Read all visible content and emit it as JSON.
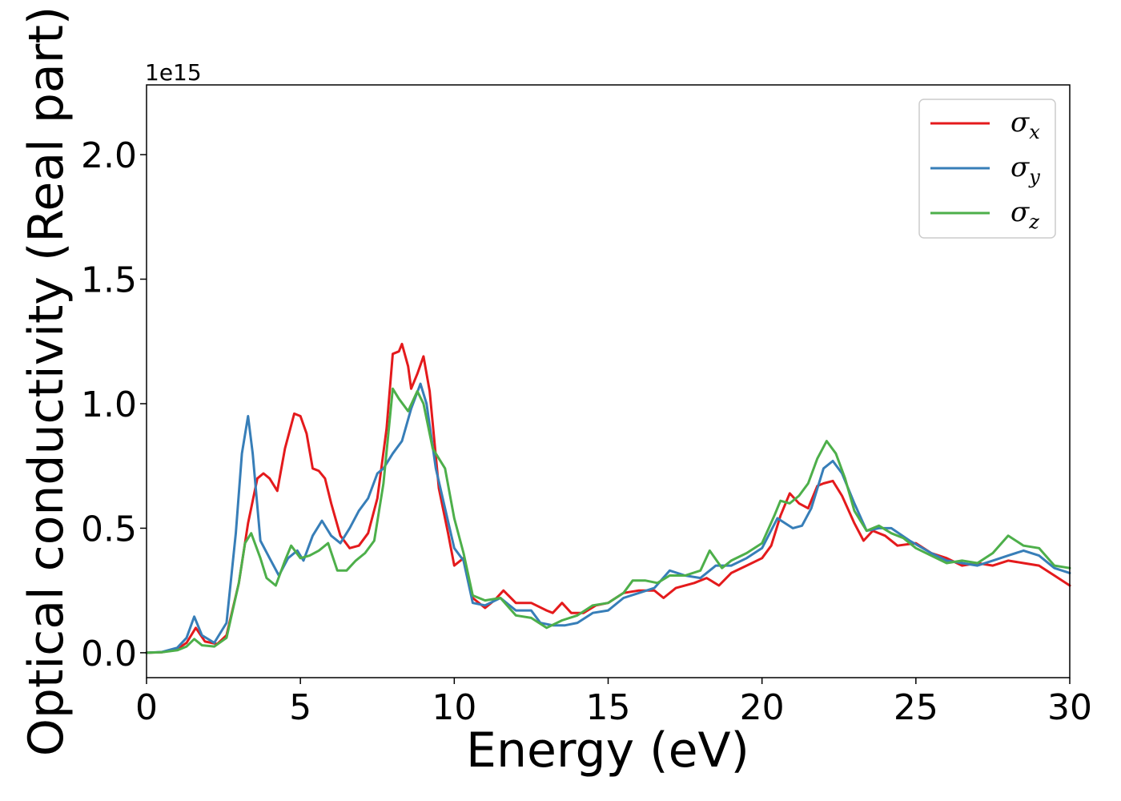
{
  "chart_data": {
    "type": "line",
    "xlabel": "Energy (eV)",
    "ylabel": "Optical conductivity (Real part)",
    "y_offset_label": "1e15",
    "xlim": [
      0,
      30
    ],
    "ylim": [
      -0.1,
      2.28
    ],
    "x_ticks": [
      0,
      5,
      10,
      15,
      20,
      25,
      30
    ],
    "x_tick_labels": [
      "0",
      "5",
      "10",
      "15",
      "20",
      "25",
      "30"
    ],
    "y_ticks": [
      0.0,
      0.5,
      1.0,
      1.5,
      2.0
    ],
    "y_tick_labels": [
      "0.0",
      "0.5",
      "1.0",
      "1.5",
      "2.0"
    ],
    "grid": false,
    "legend_position": "top-right",
    "series": [
      {
        "name": "σ",
        "subscript": "x",
        "color": "#e41a1c",
        "points": [
          [
            0,
            0
          ],
          [
            0.5,
            0.002
          ],
          [
            1.0,
            0.015
          ],
          [
            1.3,
            0.04
          ],
          [
            1.6,
            0.1
          ],
          [
            1.9,
            0.045
          ],
          [
            2.3,
            0.035
          ],
          [
            2.6,
            0.07
          ],
          [
            3.0,
            0.28
          ],
          [
            3.3,
            0.52
          ],
          [
            3.6,
            0.7
          ],
          [
            3.8,
            0.72
          ],
          [
            4.0,
            0.7
          ],
          [
            4.25,
            0.65
          ],
          [
            4.5,
            0.82
          ],
          [
            4.8,
            0.96
          ],
          [
            5.0,
            0.95
          ],
          [
            5.2,
            0.88
          ],
          [
            5.4,
            0.74
          ],
          [
            5.6,
            0.73
          ],
          [
            5.8,
            0.7
          ],
          [
            6.0,
            0.6
          ],
          [
            6.3,
            0.47
          ],
          [
            6.6,
            0.42
          ],
          [
            6.9,
            0.43
          ],
          [
            7.2,
            0.48
          ],
          [
            7.5,
            0.62
          ],
          [
            7.8,
            0.9
          ],
          [
            8.0,
            1.2
          ],
          [
            8.2,
            1.21
          ],
          [
            8.3,
            1.24
          ],
          [
            8.5,
            1.15
          ],
          [
            8.6,
            1.06
          ],
          [
            8.8,
            1.12
          ],
          [
            9.0,
            1.19
          ],
          [
            9.2,
            1.05
          ],
          [
            9.5,
            0.66
          ],
          [
            9.8,
            0.48
          ],
          [
            10.0,
            0.35
          ],
          [
            10.3,
            0.38
          ],
          [
            10.6,
            0.22
          ],
          [
            11.0,
            0.18
          ],
          [
            11.3,
            0.21
          ],
          [
            11.6,
            0.25
          ],
          [
            12.0,
            0.2
          ],
          [
            12.5,
            0.2
          ],
          [
            13.0,
            0.17
          ],
          [
            13.2,
            0.16
          ],
          [
            13.5,
            0.2
          ],
          [
            13.8,
            0.16
          ],
          [
            14.2,
            0.16
          ],
          [
            14.6,
            0.19
          ],
          [
            15.0,
            0.2
          ],
          [
            15.5,
            0.24
          ],
          [
            16.0,
            0.25
          ],
          [
            16.5,
            0.25
          ],
          [
            16.8,
            0.22
          ],
          [
            17.2,
            0.26
          ],
          [
            17.8,
            0.28
          ],
          [
            18.2,
            0.3
          ],
          [
            18.6,
            0.27
          ],
          [
            19.0,
            0.32
          ],
          [
            19.5,
            0.35
          ],
          [
            20.0,
            0.38
          ],
          [
            20.3,
            0.43
          ],
          [
            20.6,
            0.55
          ],
          [
            20.9,
            0.64
          ],
          [
            21.2,
            0.6
          ],
          [
            21.5,
            0.58
          ],
          [
            21.8,
            0.67
          ],
          [
            22.0,
            0.68
          ],
          [
            22.3,
            0.69
          ],
          [
            22.6,
            0.63
          ],
          [
            23.0,
            0.52
          ],
          [
            23.3,
            0.45
          ],
          [
            23.6,
            0.49
          ],
          [
            24.0,
            0.47
          ],
          [
            24.4,
            0.43
          ],
          [
            25.0,
            0.44
          ],
          [
            25.5,
            0.4
          ],
          [
            26.0,
            0.38
          ],
          [
            26.5,
            0.35
          ],
          [
            27.0,
            0.36
          ],
          [
            27.5,
            0.35
          ],
          [
            28.0,
            0.37
          ],
          [
            28.5,
            0.36
          ],
          [
            29.0,
            0.35
          ],
          [
            29.5,
            0.31
          ],
          [
            30.0,
            0.27
          ]
        ]
      },
      {
        "name": "σ",
        "subscript": "y",
        "color": "#377eb8",
        "points": [
          [
            0,
            0
          ],
          [
            0.5,
            0.003
          ],
          [
            1.0,
            0.02
          ],
          [
            1.3,
            0.06
          ],
          [
            1.55,
            0.145
          ],
          [
            1.8,
            0.07
          ],
          [
            2.2,
            0.04
          ],
          [
            2.6,
            0.12
          ],
          [
            2.9,
            0.48
          ],
          [
            3.1,
            0.8
          ],
          [
            3.3,
            0.95
          ],
          [
            3.45,
            0.8
          ],
          [
            3.7,
            0.45
          ],
          [
            4.0,
            0.38
          ],
          [
            4.3,
            0.31
          ],
          [
            4.6,
            0.38
          ],
          [
            4.9,
            0.41
          ],
          [
            5.1,
            0.37
          ],
          [
            5.4,
            0.47
          ],
          [
            5.7,
            0.53
          ],
          [
            6.0,
            0.47
          ],
          [
            6.3,
            0.44
          ],
          [
            6.6,
            0.5
          ],
          [
            6.9,
            0.57
          ],
          [
            7.2,
            0.62
          ],
          [
            7.5,
            0.72
          ],
          [
            7.7,
            0.74
          ],
          [
            8.0,
            0.8
          ],
          [
            8.3,
            0.85
          ],
          [
            8.6,
            0.98
          ],
          [
            8.9,
            1.08
          ],
          [
            9.1,
            1.0
          ],
          [
            9.4,
            0.74
          ],
          [
            9.7,
            0.58
          ],
          [
            10.0,
            0.42
          ],
          [
            10.3,
            0.37
          ],
          [
            10.6,
            0.2
          ],
          [
            11.0,
            0.19
          ],
          [
            11.5,
            0.22
          ],
          [
            12.0,
            0.17
          ],
          [
            12.5,
            0.17
          ],
          [
            12.8,
            0.12
          ],
          [
            13.2,
            0.11
          ],
          [
            13.6,
            0.11
          ],
          [
            14.0,
            0.12
          ],
          [
            14.5,
            0.16
          ],
          [
            15.0,
            0.17
          ],
          [
            15.5,
            0.22
          ],
          [
            16.0,
            0.24
          ],
          [
            16.5,
            0.26
          ],
          [
            17.0,
            0.33
          ],
          [
            17.5,
            0.31
          ],
          [
            18.0,
            0.3
          ],
          [
            18.5,
            0.35
          ],
          [
            19.0,
            0.35
          ],
          [
            19.5,
            0.38
          ],
          [
            20.0,
            0.42
          ],
          [
            20.5,
            0.54
          ],
          [
            21.0,
            0.5
          ],
          [
            21.3,
            0.51
          ],
          [
            21.6,
            0.58
          ],
          [
            22.0,
            0.74
          ],
          [
            22.3,
            0.77
          ],
          [
            22.6,
            0.72
          ],
          [
            23.0,
            0.6
          ],
          [
            23.4,
            0.49
          ],
          [
            23.8,
            0.5
          ],
          [
            24.2,
            0.5
          ],
          [
            24.8,
            0.45
          ],
          [
            25.5,
            0.4
          ],
          [
            26.0,
            0.37
          ],
          [
            26.5,
            0.36
          ],
          [
            27.0,
            0.35
          ],
          [
            27.5,
            0.37
          ],
          [
            28.0,
            0.39
          ],
          [
            28.5,
            0.41
          ],
          [
            29.0,
            0.39
          ],
          [
            29.5,
            0.34
          ],
          [
            30.0,
            0.32
          ]
        ]
      },
      {
        "name": "σ",
        "subscript": "z",
        "color": "#4daf4a",
        "points": [
          [
            0,
            0
          ],
          [
            0.5,
            0.002
          ],
          [
            1.0,
            0.01
          ],
          [
            1.3,
            0.025
          ],
          [
            1.55,
            0.055
          ],
          [
            1.8,
            0.03
          ],
          [
            2.2,
            0.025
          ],
          [
            2.6,
            0.06
          ],
          [
            3.0,
            0.28
          ],
          [
            3.2,
            0.44
          ],
          [
            3.4,
            0.48
          ],
          [
            3.7,
            0.38
          ],
          [
            3.9,
            0.3
          ],
          [
            4.2,
            0.27
          ],
          [
            4.5,
            0.37
          ],
          [
            4.7,
            0.43
          ],
          [
            5.0,
            0.38
          ],
          [
            5.3,
            0.39
          ],
          [
            5.6,
            0.41
          ],
          [
            5.9,
            0.44
          ],
          [
            6.2,
            0.33
          ],
          [
            6.5,
            0.33
          ],
          [
            6.8,
            0.37
          ],
          [
            7.1,
            0.4
          ],
          [
            7.4,
            0.45
          ],
          [
            7.7,
            0.68
          ],
          [
            8.0,
            1.06
          ],
          [
            8.2,
            1.02
          ],
          [
            8.5,
            0.97
          ],
          [
            8.8,
            1.05
          ],
          [
            9.0,
            1.0
          ],
          [
            9.3,
            0.82
          ],
          [
            9.7,
            0.74
          ],
          [
            10.0,
            0.54
          ],
          [
            10.3,
            0.4
          ],
          [
            10.6,
            0.23
          ],
          [
            11.0,
            0.21
          ],
          [
            11.5,
            0.22
          ],
          [
            12.0,
            0.15
          ],
          [
            12.5,
            0.14
          ],
          [
            13.0,
            0.1
          ],
          [
            13.5,
            0.13
          ],
          [
            14.0,
            0.15
          ],
          [
            14.5,
            0.19
          ],
          [
            15.0,
            0.2
          ],
          [
            15.5,
            0.24
          ],
          [
            15.8,
            0.29
          ],
          [
            16.2,
            0.29
          ],
          [
            16.6,
            0.28
          ],
          [
            17.0,
            0.31
          ],
          [
            17.5,
            0.31
          ],
          [
            18.0,
            0.33
          ],
          [
            18.3,
            0.41
          ],
          [
            18.7,
            0.34
          ],
          [
            19.0,
            0.37
          ],
          [
            19.5,
            0.4
          ],
          [
            20.0,
            0.44
          ],
          [
            20.4,
            0.55
          ],
          [
            20.6,
            0.61
          ],
          [
            20.9,
            0.6
          ],
          [
            21.2,
            0.63
          ],
          [
            21.5,
            0.68
          ],
          [
            21.8,
            0.78
          ],
          [
            22.1,
            0.85
          ],
          [
            22.4,
            0.8
          ],
          [
            22.7,
            0.7
          ],
          [
            23.0,
            0.57
          ],
          [
            23.4,
            0.49
          ],
          [
            23.8,
            0.51
          ],
          [
            24.2,
            0.48
          ],
          [
            24.6,
            0.46
          ],
          [
            25.0,
            0.42
          ],
          [
            25.5,
            0.39
          ],
          [
            26.0,
            0.36
          ],
          [
            26.5,
            0.37
          ],
          [
            27.0,
            0.36
          ],
          [
            27.5,
            0.4
          ],
          [
            28.0,
            0.47
          ],
          [
            28.5,
            0.43
          ],
          [
            29.0,
            0.42
          ],
          [
            29.5,
            0.35
          ],
          [
            30.0,
            0.34
          ]
        ]
      }
    ]
  }
}
